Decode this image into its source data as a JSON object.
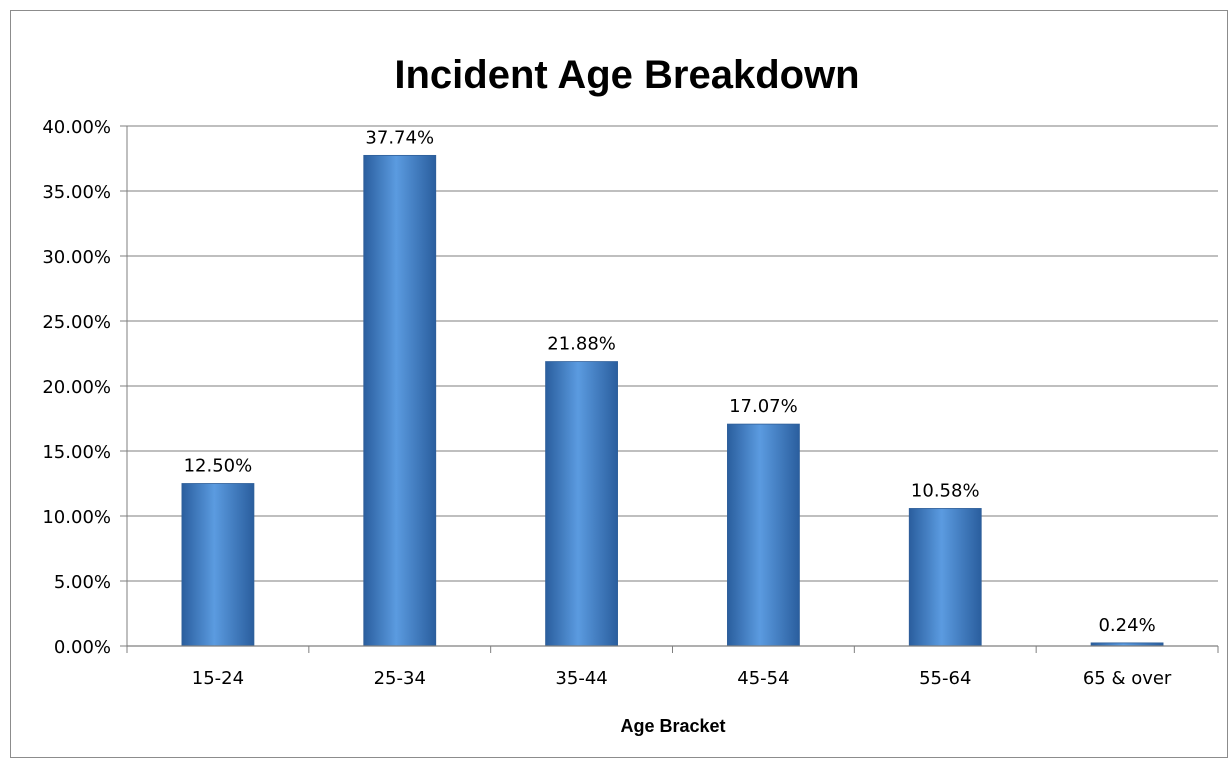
{
  "chart_data": {
    "type": "bar",
    "title": "Incident Age Breakdown",
    "xlabel": "Age Bracket",
    "ylabel": "",
    "categories": [
      "15-24",
      "25-34",
      "35-44",
      "45-54",
      "55-64",
      "65 & over"
    ],
    "values": [
      12.5,
      37.74,
      21.88,
      17.07,
      10.58,
      0.24
    ],
    "data_labels": [
      "12.50%",
      "37.74%",
      "21.88%",
      "17.07%",
      "10.58%",
      "0.24%"
    ],
    "ylim": [
      0,
      40
    ],
    "yticks": [
      0,
      5,
      10,
      15,
      20,
      25,
      30,
      35,
      40
    ],
    "ytick_labels": [
      "0.00%",
      "5.00%",
      "10.00%",
      "15.00%",
      "20.00%",
      "25.00%",
      "30.00%",
      "35.00%",
      "40.00%"
    ],
    "grid": true,
    "legend": "none",
    "colors": {
      "bar_light": "#5b9be0",
      "bar_dark": "#2a5e9e",
      "grid": "#7f7f7f",
      "axis": "#7f7f7f"
    }
  }
}
